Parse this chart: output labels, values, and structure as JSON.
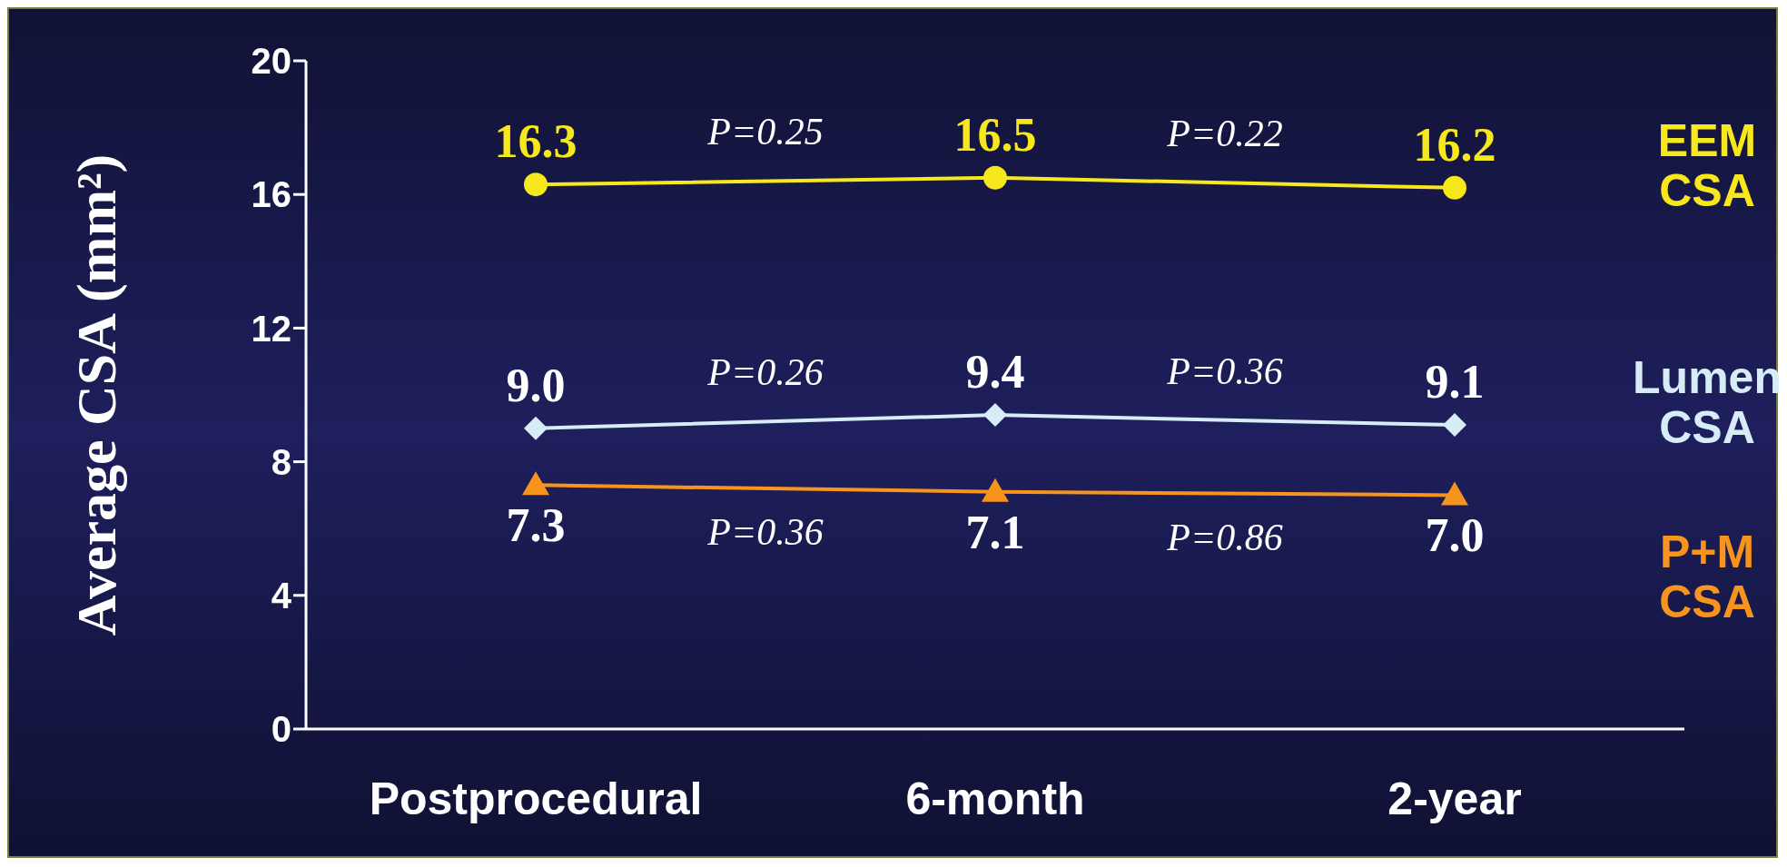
{
  "chart_data": {
    "type": "line",
    "ylabel": "Average CSA (mm²)",
    "categories": [
      "Postprocedural",
      "6-month",
      "2-year"
    ],
    "ylim": [
      0,
      20
    ],
    "yticks": [
      0,
      4,
      8,
      12,
      16,
      20
    ],
    "grid": false,
    "line_style": "solid",
    "series": [
      {
        "name": "EEM\nCSA",
        "color": "#f7e81c",
        "marker": "circle",
        "values": [
          16.3,
          16.5,
          16.2
        ],
        "value_labels": [
          "16.3",
          "16.5",
          "16.2"
        ]
      },
      {
        "name": "Lumen\nCSA",
        "color": "#d6ecf7",
        "marker": "diamond",
        "values": [
          9.0,
          9.4,
          9.1
        ],
        "value_labels": [
          "9.0",
          "9.4",
          "9.1"
        ]
      },
      {
        "name": "P+M\nCSA",
        "color": "#f7941d",
        "marker": "triangle",
        "values": [
          7.3,
          7.1,
          7.0
        ],
        "value_labels": [
          "7.3",
          "7.1",
          "7.0"
        ]
      }
    ],
    "annotations": [
      "P=0.25",
      "P=0.22",
      "P=0.26",
      "P=0.36",
      "P=0.36",
      "P=0.86"
    ]
  }
}
